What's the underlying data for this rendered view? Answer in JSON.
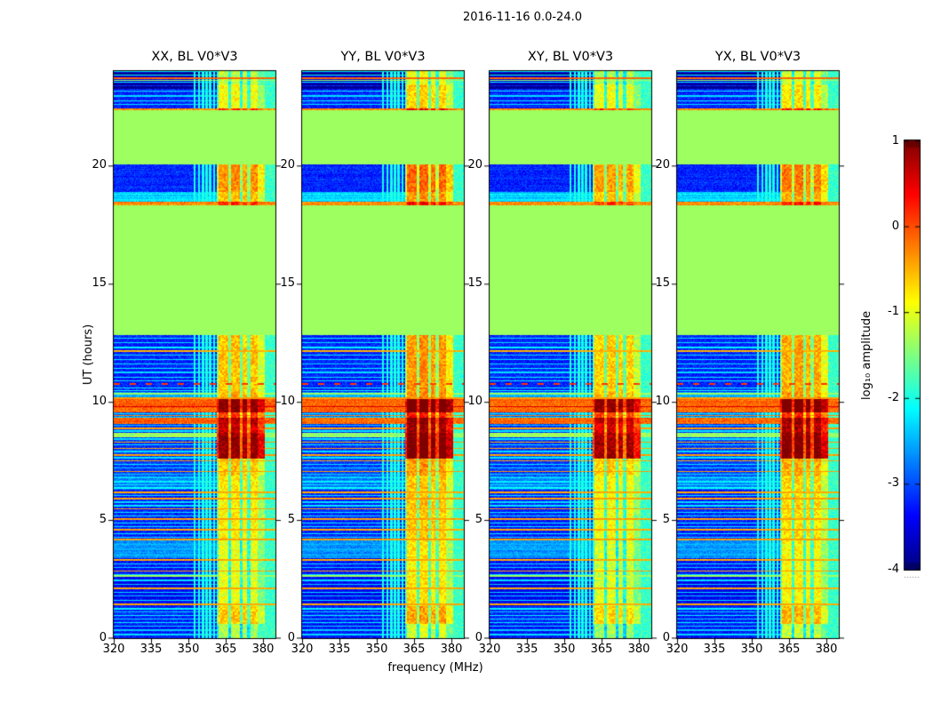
{
  "figure": {
    "background": "#ffffff",
    "axis_color": "#000000",
    "text_color": "#000000"
  },
  "chart_data": {
    "type": "heatmap",
    "title": "2016-11-16 0.0-24.0",
    "xlabel": "frequency (MHz)",
    "ylabel": "UT (hours)",
    "xlim": [
      320,
      385
    ],
    "ylim": [
      0,
      24
    ],
    "xticks": [
      320,
      335,
      350,
      365,
      380
    ],
    "yticks": [
      0,
      5,
      10,
      15,
      20
    ],
    "grid": false,
    "colormap": "jet",
    "panels": [
      {
        "key": "xx",
        "label": "XX, BL V0*V3",
        "seed": 11,
        "band_bias": 0.0
      },
      {
        "key": "yy",
        "label": "YY, BL V0*V3",
        "seed": 23,
        "band_bias": 0.22
      },
      {
        "key": "xy",
        "label": "XY, BL V0*V3",
        "seed": 37,
        "band_bias": -0.08
      },
      {
        "key": "yx",
        "label": "YX, BL V0*V3",
        "seed": 51,
        "band_bias": 0.12
      }
    ],
    "colorbar": {
      "label": "log₁₀ amplitude",
      "vmin": -4,
      "vmax": 1,
      "ticks": [
        1,
        0,
        -1,
        -2,
        -3,
        -4
      ]
    },
    "flag_value": -1.35,
    "flagged_time_ranges_hours": [
      [
        12.82,
        18.33
      ],
      [
        20.06,
        22.33
      ]
    ],
    "rfi_band": {
      "f0": 361.5,
      "f1": 380.6,
      "edge_value": -1.85,
      "columns": [
        [
          361.5,
          362.3,
          -0.55
        ],
        [
          362.3,
          366.2,
          0.3
        ],
        [
          366.2,
          367.3,
          -0.7
        ],
        [
          367.3,
          370.7,
          0.35
        ],
        [
          370.7,
          371.9,
          -0.75
        ],
        [
          371.9,
          373.6,
          0.25
        ],
        [
          373.6,
          374.9,
          -0.7
        ],
        [
          374.9,
          377.7,
          0.3
        ],
        [
          377.7,
          380.6,
          -0.2
        ]
      ]
    },
    "vlines": {
      "freqs": [
        352.6,
        354.3,
        355.9,
        357.3,
        358.7,
        360.3
      ],
      "value": -2.0
    },
    "regions": [
      {
        "t0": 0.0,
        "t1": 0.62,
        "base": -3.3,
        "band": -1.6
      },
      {
        "t0": 0.62,
        "t1": 1.35,
        "base": -3.2,
        "band": -0.95
      },
      {
        "t0": 1.35,
        "t1": 2.6,
        "base": -3.4,
        "band": -1.3
      },
      {
        "t0": 2.6,
        "t1": 3.38,
        "base": -3.3,
        "band": -1.35
      },
      {
        "t0": 3.38,
        "t1": 4.15,
        "base": -2.65,
        "band": -1.3
      },
      {
        "t0": 4.15,
        "t1": 6.3,
        "base": -3.2,
        "band": -1.15
      },
      {
        "t0": 6.3,
        "t1": 6.9,
        "base": -2.75,
        "band": -1.1
      },
      {
        "t0": 6.9,
        "t1": 7.58,
        "base": -3.1,
        "band": -0.9
      },
      {
        "t0": 7.58,
        "t1": 8.5,
        "base": -3.1,
        "band": 0.62
      },
      {
        "t0": 8.5,
        "t1": 8.68,
        "base": -1.35,
        "band": 0.55
      },
      {
        "t0": 8.68,
        "t1": 9.06,
        "base": -3.1,
        "band": 0.3
      },
      {
        "t0": 9.06,
        "t1": 9.32,
        "base": -0.12,
        "band": 0.45
      },
      {
        "t0": 9.32,
        "t1": 9.57,
        "base": -2.9,
        "band": -0.2
      },
      {
        "t0": 9.57,
        "t1": 10.12,
        "base": -0.12,
        "band": 0.72
      },
      {
        "t0": 10.12,
        "t1": 10.42,
        "base": -2.6,
        "band": -0.8
      },
      {
        "t0": 10.42,
        "t1": 12.82,
        "base": -3.2,
        "band": -0.9
      },
      {
        "t0": 12.82,
        "t1": 18.33,
        "flag": true
      },
      {
        "t0": 18.33,
        "t1": 18.47,
        "base": -0.3,
        "band": -0.12
      },
      {
        "t0": 18.47,
        "t1": 18.88,
        "base": -2.4,
        "band": -0.9
      },
      {
        "t0": 18.88,
        "t1": 20.06,
        "base": -3.2,
        "band": -0.65
      },
      {
        "t0": 20.06,
        "t1": 22.33,
        "flag": true
      },
      {
        "t0": 22.33,
        "t1": 22.42,
        "base": -0.3,
        "band": -0.12
      },
      {
        "t0": 22.42,
        "t1": 23.42,
        "base": -3.2,
        "band": -1.2
      },
      {
        "t0": 23.42,
        "t1": 24.01,
        "base": -3.6,
        "band": -1.5
      }
    ],
    "stripes": [
      {
        "t": 23.97,
        "v": -2.2
      },
      {
        "t": 23.9,
        "v": -3.95,
        "h": 0.08
      },
      {
        "t": 23.82,
        "v": -2.1
      },
      {
        "t": 23.7,
        "v": -0.12,
        "h": 0.07
      },
      {
        "t": 23.6,
        "v": -1.35
      },
      {
        "t": 23.52,
        "v": -2.25
      },
      {
        "t": 23.45,
        "v": -3.9,
        "h": 0.07
      },
      {
        "t": 23.3,
        "v": -3.9,
        "h": 0.1
      },
      {
        "t": 23.15,
        "v": -2.25
      },
      {
        "t": 22.95,
        "v": -2.3
      },
      {
        "t": 22.75,
        "v": -2.2
      },
      {
        "t": 22.58,
        "v": -2.3
      },
      {
        "t": 18.8,
        "v": -2.1
      },
      {
        "t": 18.67,
        "v": -2.25
      },
      {
        "t": 18.55,
        "v": -2.2
      },
      {
        "t": 12.7,
        "v": -2.25
      },
      {
        "t": 12.52,
        "v": -2.3
      },
      {
        "t": 12.3,
        "v": -2.2
      },
      {
        "t": 12.15,
        "v": -0.5,
        "h": 0.06
      },
      {
        "t": 11.97,
        "v": -2.3
      },
      {
        "t": 11.8,
        "v": -2.25
      },
      {
        "t": 11.6,
        "v": -2.3
      },
      {
        "t": 11.42,
        "v": -2.2
      },
      {
        "t": 11.25,
        "v": -2.3
      },
      {
        "t": 11.05,
        "v": -2.25
      },
      {
        "t": 10.88,
        "v": -2.3
      },
      {
        "t": 10.75,
        "v": 0.1,
        "dash": true,
        "h": 0.07
      },
      {
        "t": 10.6,
        "v": -2.25
      },
      {
        "t": 10.48,
        "v": -2.15
      },
      {
        "t": 10.33,
        "v": -1.35,
        "h": 0.08
      },
      {
        "t": 10.24,
        "v": -2.4
      },
      {
        "t": 10.16,
        "v": -0.4,
        "h": 0.07
      },
      {
        "t": 9.8,
        "v": 0.55,
        "h": 0.07
      },
      {
        "t": 9.5,
        "v": -2.2
      },
      {
        "t": 9.43,
        "v": -0.3,
        "h": 0.06
      },
      {
        "t": 9.36,
        "v": -2.3
      },
      {
        "t": 9.0,
        "v": -2.4
      },
      {
        "t": 8.88,
        "v": -0.4,
        "h": 0.06
      },
      {
        "t": 8.76,
        "v": -2.25
      },
      {
        "t": 8.43,
        "v": -2.3
      },
      {
        "t": 8.3,
        "v": -0.4,
        "h": 0.06
      },
      {
        "t": 8.18,
        "v": -2.25
      },
      {
        "t": 8.03,
        "v": -0.45,
        "h": 0.06
      },
      {
        "t": 7.9,
        "v": -2.3
      },
      {
        "t": 7.76,
        "v": -0.4,
        "h": 0.06
      },
      {
        "t": 7.64,
        "v": -2.25
      },
      {
        "t": 7.5,
        "v": -0.45,
        "h": 0.06
      },
      {
        "t": 7.36,
        "v": -2.25
      },
      {
        "t": 7.2,
        "v": -2.3
      },
      {
        "t": 7.06,
        "v": -0.4,
        "h": 0.06
      },
      {
        "t": 6.94,
        "v": -2.2
      },
      {
        "t": 6.78,
        "v": -2.15
      },
      {
        "t": 6.62,
        "v": -2.2
      },
      {
        "t": 6.48,
        "v": -2.25
      },
      {
        "t": 6.36,
        "v": -2.1
      },
      {
        "t": 6.18,
        "v": -0.45,
        "h": 0.06
      },
      {
        "t": 6.03,
        "v": -2.25
      },
      {
        "t": 5.9,
        "v": -0.4,
        "h": 0.06
      },
      {
        "t": 5.76,
        "v": -2.3
      },
      {
        "t": 5.6,
        "v": -2.25
      },
      {
        "t": 5.48,
        "v": -0.45,
        "h": 0.06
      },
      {
        "t": 5.33,
        "v": -2.25
      },
      {
        "t": 5.18,
        "v": -2.3
      },
      {
        "t": 5.03,
        "v": -0.4,
        "h": 0.06
      },
      {
        "t": 4.88,
        "v": -2.25
      },
      {
        "t": 4.72,
        "v": -2.3
      },
      {
        "t": 4.58,
        "v": -0.45,
        "h": 0.06
      },
      {
        "t": 4.43,
        "v": -2.25
      },
      {
        "t": 4.28,
        "v": -2.3
      },
      {
        "t": 4.17,
        "v": -0.4,
        "h": 0.06
      },
      {
        "t": 3.98,
        "v": -2.45
      },
      {
        "t": 3.76,
        "v": -2.5
      },
      {
        "t": 3.52,
        "v": -2.45
      },
      {
        "t": 3.3,
        "v": -0.45,
        "h": 0.06
      },
      {
        "t": 3.14,
        "v": -2.3
      },
      {
        "t": 2.98,
        "v": -2.4
      },
      {
        "t": 2.84,
        "v": -0.4,
        "h": 0.06
      },
      {
        "t": 2.7,
        "v": -2.3
      },
      {
        "t": 2.62,
        "v": -1.35,
        "h": 0.08
      },
      {
        "t": 2.44,
        "v": -2.3
      },
      {
        "t": 2.28,
        "v": -2.4
      },
      {
        "t": 2.1,
        "v": -0.45,
        "h": 0.06
      },
      {
        "t": 1.94,
        "v": -2.3
      },
      {
        "t": 1.78,
        "v": -2.4
      },
      {
        "t": 1.6,
        "v": -2.3
      },
      {
        "t": 1.44,
        "v": -0.45,
        "h": 0.06
      },
      {
        "t": 1.24,
        "v": -2.2
      },
      {
        "t": 1.1,
        "v": -2.3
      },
      {
        "t": 0.95,
        "v": -2.15
      },
      {
        "t": 0.8,
        "v": -2.3
      },
      {
        "t": 0.67,
        "v": -2.2
      },
      {
        "t": 0.5,
        "v": -2.3
      },
      {
        "t": 0.34,
        "v": -2.4
      },
      {
        "t": 0.15,
        "v": -2.3
      }
    ]
  }
}
